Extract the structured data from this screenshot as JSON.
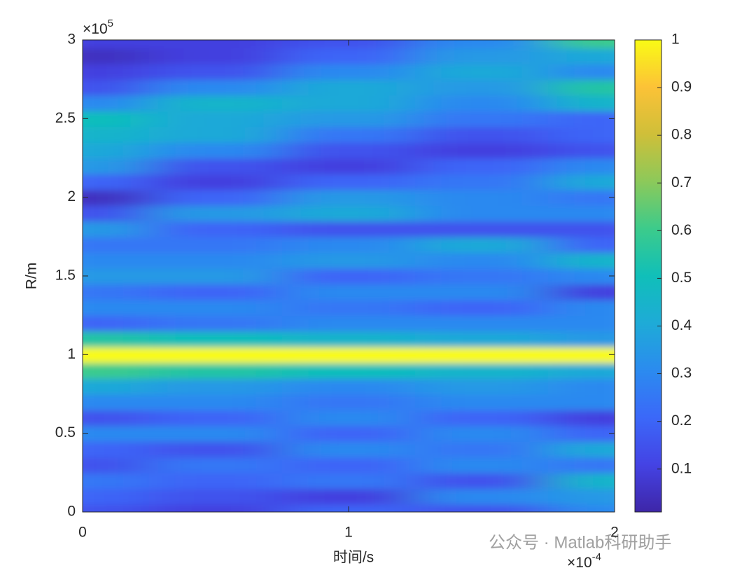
{
  "chart_data": {
    "type": "heatmap",
    "xlabel": "时间/s",
    "ylabel": "R/m",
    "x_exponent": {
      "base": "×10",
      "power": "-4"
    },
    "y_exponent": {
      "base": "×10",
      "power": "5"
    },
    "x": [
      0,
      0.5,
      1,
      1.5,
      2
    ],
    "y": [
      0,
      0.1,
      0.2,
      0.3,
      0.4,
      0.5,
      0.6,
      0.7,
      0.8,
      0.9,
      1,
      1.1,
      1.2,
      1.3,
      1.4,
      1.5,
      1.6,
      1.7,
      1.8,
      1.9,
      2,
      2.1,
      2.2,
      2.3,
      2.4,
      2.5,
      2.6,
      2.7,
      2.8,
      2.9,
      3
    ],
    "z": [
      [
        0.15,
        0.1,
        0.2,
        0.15,
        0.3
      ],
      [
        0.2,
        0.15,
        0.1,
        0.3,
        0.35
      ],
      [
        0.25,
        0.2,
        0.25,
        0.15,
        0.45
      ],
      [
        0.15,
        0.25,
        0.2,
        0.3,
        0.25
      ],
      [
        0.2,
        0.15,
        0.3,
        0.25,
        0.4
      ],
      [
        0.3,
        0.3,
        0.2,
        0.3,
        0.2
      ],
      [
        0.15,
        0.2,
        0.3,
        0.2,
        0.1
      ],
      [
        0.3,
        0.3,
        0.25,
        0.3,
        0.3
      ],
      [
        0.4,
        0.35,
        0.3,
        0.35,
        0.3
      ],
      [
        0.6,
        0.55,
        0.5,
        0.45,
        0.4
      ],
      [
        1,
        1,
        1,
        1,
        1
      ],
      [
        0.55,
        0.5,
        0.45,
        0.4,
        0.35
      ],
      [
        0.2,
        0.25,
        0.3,
        0.3,
        0.3
      ],
      [
        0.3,
        0.3,
        0.25,
        0.2,
        0.3
      ],
      [
        0.25,
        0.2,
        0.3,
        0.3,
        0.1
      ],
      [
        0.35,
        0.35,
        0.2,
        0.25,
        0.3
      ],
      [
        0.3,
        0.3,
        0.35,
        0.3,
        0.45
      ],
      [
        0.25,
        0.25,
        0.3,
        0.4,
        0.2
      ],
      [
        0.35,
        0.2,
        0.15,
        0.15,
        0.15
      ],
      [
        0.15,
        0.35,
        0.4,
        0.3,
        0.3
      ],
      [
        0.05,
        0.2,
        0.35,
        0.3,
        0.25
      ],
      [
        0.2,
        0.1,
        0.2,
        0.25,
        0.4
      ],
      [
        0.35,
        0.15,
        0.1,
        0.2,
        0.3
      ],
      [
        0.4,
        0.3,
        0.15,
        0.1,
        0.15
      ],
      [
        0.45,
        0.4,
        0.25,
        0.15,
        0.2
      ],
      [
        0.5,
        0.4,
        0.35,
        0.25,
        0.2
      ],
      [
        0.3,
        0.45,
        0.4,
        0.3,
        0.45
      ],
      [
        0.15,
        0.3,
        0.4,
        0.35,
        0.55
      ],
      [
        0.1,
        0.15,
        0.3,
        0.4,
        0.3
      ],
      [
        0.05,
        0.1,
        0.2,
        0.35,
        0.4
      ],
      [
        0.1,
        0.1,
        0.15,
        0.3,
        0.6
      ]
    ],
    "xlim": [
      0,
      2
    ],
    "xticks": [
      0,
      1,
      2
    ],
    "ylim": [
      0,
      3
    ],
    "yticks": [
      0,
      0.5,
      1,
      1.5,
      2,
      2.5,
      3
    ],
    "clim": [
      0.01,
      1
    ],
    "cticks": [
      0.1,
      0.2,
      0.3,
      0.4,
      0.5,
      0.6,
      0.7,
      0.8,
      0.9,
      1
    ],
    "colormap": [
      "#3e26a8",
      "#4443e4",
      "#3b68f9",
      "#2b8bef",
      "#1eabd7",
      "#10bfb9",
      "#3ccb8b",
      "#8cc95a",
      "#cfbf39",
      "#fcc237",
      "#f9fb15"
    ],
    "watermark": "公众号 · Matlab科研助手"
  }
}
